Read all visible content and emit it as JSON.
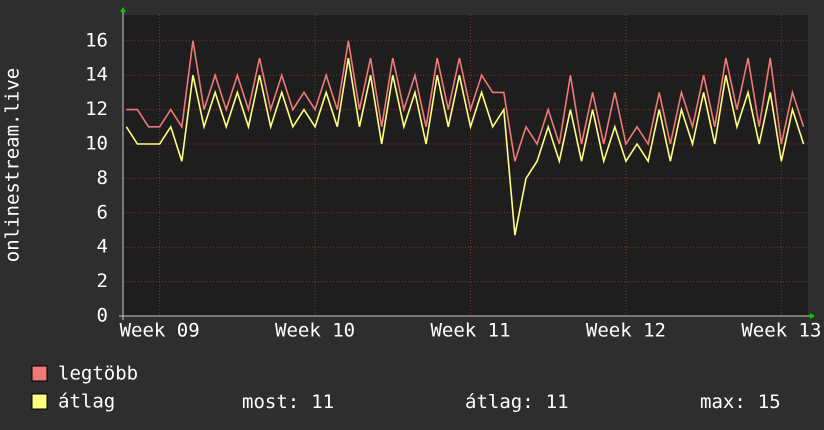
{
  "chart_data": {
    "type": "line",
    "y_label": "onlinestream.live",
    "x": [
      -1.5,
      -1,
      -0.5,
      0,
      0.5,
      1,
      1.5,
      2,
      2.5,
      3,
      3.5,
      4,
      4.5,
      5,
      5.5,
      6,
      6.5,
      7,
      7.5,
      8,
      8.5,
      9,
      9.5,
      10,
      10.5,
      11,
      11.5,
      12,
      12.5,
      13,
      13.5,
      14,
      14.5,
      15,
      15.5,
      16,
      16.5,
      17,
      17.5,
      18,
      18.5,
      19,
      19.5,
      20,
      20.5,
      21,
      21.5,
      22,
      22.5,
      23,
      23.5,
      24,
      24.5,
      25,
      25.5,
      26,
      26.5,
      27,
      27.5,
      28,
      28.5,
      29
    ],
    "series": [
      {
        "name": "legtöbb",
        "color": "#f07878",
        "values": [
          12,
          12,
          11,
          11,
          12,
          11,
          16,
          12,
          14,
          12,
          14,
          12,
          15,
          12,
          14,
          12,
          13,
          12,
          14,
          12,
          16,
          12,
          15,
          11,
          15,
          12,
          14,
          11,
          15,
          12,
          15,
          12,
          14,
          13,
          13,
          9,
          11,
          10,
          12,
          10,
          14,
          10,
          13,
          10,
          13,
          10,
          11,
          10,
          13,
          10,
          13,
          11,
          14,
          11,
          15,
          12,
          15,
          11,
          15,
          10,
          13,
          11
        ]
      },
      {
        "name": "átlag",
        "color": "#ffff80",
        "values": [
          11,
          10,
          10,
          10,
          11,
          9,
          14,
          11,
          13,
          11,
          13,
          11,
          14,
          11,
          13,
          11,
          12,
          11,
          13,
          11,
          15,
          11,
          14,
          10,
          14,
          11,
          13,
          10,
          14,
          11,
          14,
          11,
          13,
          11,
          12,
          4.7,
          8,
          9,
          11,
          9,
          12,
          9,
          12,
          9,
          11,
          9,
          10,
          9,
          12,
          9,
          12,
          10,
          13,
          10,
          14,
          11,
          13,
          10,
          13,
          9,
          12,
          10
        ]
      }
    ],
    "xlim": [
      -1.65,
      29.2
    ],
    "xticks": [
      {
        "value": 0,
        "label": "Week 09"
      },
      {
        "value": 7,
        "label": "Week 10"
      },
      {
        "value": 14,
        "label": "Week 11"
      },
      {
        "value": 21,
        "label": "Week 12"
      },
      {
        "value": 28,
        "label": "Week 13"
      }
    ],
    "ylim": [
      0,
      17.5
    ],
    "yticks": [
      0,
      2,
      4,
      6,
      8,
      10,
      12,
      14,
      16
    ],
    "grid": true,
    "stats": [
      {
        "label": "most:",
        "value": 11
      },
      {
        "label": "átlag:",
        "value": 11
      },
      {
        "label": "max:",
        "value": 15
      }
    ]
  }
}
